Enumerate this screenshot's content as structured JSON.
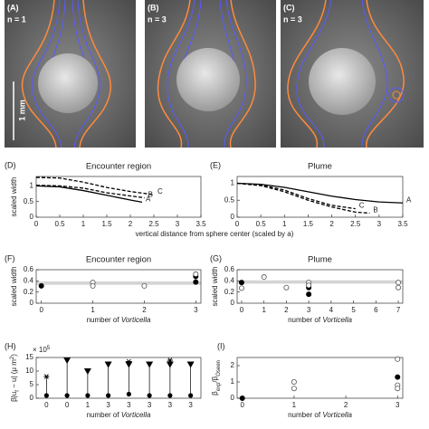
{
  "images": {
    "panels": [
      {
        "label": "(A)",
        "n": "n = 1"
      },
      {
        "label": "(B)",
        "n": "n = 3"
      },
      {
        "label": "(C)",
        "n": "n = 3"
      }
    ],
    "scale_bar": "1 mm"
  },
  "chart_data": [
    {
      "type": "line",
      "label": "(D)",
      "title": "Encounter region",
      "ylabel": "scaled width",
      "xlabel": "vertical  distance from sphere center (scaled by a)",
      "xlim": [
        0,
        3.5
      ],
      "xticks": [
        0,
        0.5,
        1,
        1.5,
        2,
        2.5,
        3,
        3.5
      ],
      "ylim": [
        0,
        1.3
      ],
      "yticks": [
        0,
        0.5,
        1
      ],
      "series": [
        {
          "name": "A",
          "color": "#000000",
          "dash": false,
          "x": [
            0,
            0.5,
            1,
            1.5,
            2,
            2.25
          ],
          "values": [
            1.0,
            0.97,
            0.85,
            0.7,
            0.55,
            0.48
          ]
        },
        {
          "name": "B",
          "color": "#000000",
          "dash": true,
          "x": [
            0,
            0.5,
            1,
            1.5,
            2,
            2.3
          ],
          "values": [
            1.02,
            1.0,
            0.93,
            0.78,
            0.68,
            0.62
          ]
        },
        {
          "name": "C",
          "color": "#000000",
          "dash": true,
          "x": [
            0,
            0.5,
            1,
            1.5,
            2,
            2.5
          ],
          "values": [
            1.27,
            1.25,
            1.12,
            0.95,
            0.82,
            0.72
          ]
        }
      ]
    },
    {
      "type": "line",
      "label": "(E)",
      "title": "Plume",
      "xlim": [
        0,
        3.5
      ],
      "xticks": [
        0,
        0.5,
        1,
        1.5,
        2,
        2.5,
        3,
        3.5
      ],
      "ylim": [
        0,
        1.2
      ],
      "yticks": [
        0,
        0.5,
        1
      ],
      "series": [
        {
          "name": "A",
          "color": "#000000",
          "dash": false,
          "x": [
            0,
            0.5,
            1,
            1.5,
            2,
            2.5,
            3,
            3.5
          ],
          "values": [
            1.0,
            0.97,
            0.88,
            0.75,
            0.62,
            0.52,
            0.45,
            0.42
          ]
        },
        {
          "name": "C",
          "color": "#000000",
          "dash": true,
          "x": [
            0,
            0.5,
            1,
            1.5,
            2,
            2.5
          ],
          "values": [
            1.0,
            0.95,
            0.8,
            0.55,
            0.35,
            0.25
          ]
        },
        {
          "name": "B",
          "color": "#000000",
          "dash": true,
          "x": [
            0,
            0.5,
            1,
            1.5,
            2,
            2.5,
            2.8
          ],
          "values": [
            1.0,
            0.93,
            0.75,
            0.5,
            0.3,
            0.15,
            0.12
          ]
        }
      ]
    },
    {
      "type": "scatter",
      "label": "(F)",
      "title": "Encounter region",
      "ylabel": "scaled width",
      "xlabel": [
        "number of ",
        "Vorticella"
      ],
      "xlim": [
        -0.1,
        3.1
      ],
      "xticks": [
        0,
        1,
        2,
        3
      ],
      "ylim": [
        0,
        0.6
      ],
      "yticks": [
        0,
        0.2,
        0.4,
        0.6
      ],
      "band": [
        0.33,
        0.39
      ],
      "band_color": "#d4d4d4",
      "series": [
        {
          "filled": true,
          "color": "#000000",
          "x": [
            0,
            3,
            3
          ],
          "values": [
            0.31,
            0.48,
            0.38
          ]
        },
        {
          "filled": false,
          "color": "#555555",
          "x": [
            1,
            1,
            2,
            3
          ],
          "values": [
            0.37,
            0.31,
            0.31,
            0.52
          ]
        }
      ]
    },
    {
      "type": "scatter",
      "label": "(G)",
      "title": "Plume",
      "ylabel": "scaled width",
      "xlabel": [
        "number of ",
        "Vorticella"
      ],
      "xlim": [
        -0.2,
        7.2
      ],
      "xticks": [
        0,
        1,
        2,
        3,
        4,
        5,
        6,
        7
      ],
      "ylim": [
        0,
        0.6
      ],
      "yticks": [
        0,
        0.2,
        0.4,
        0.6
      ],
      "band": [
        0.35,
        0.41
      ],
      "band_color": "#d4d4d4",
      "series": [
        {
          "filled": true,
          "color": "#000000",
          "x": [
            0,
            3,
            3
          ],
          "values": [
            0.37,
            0.28,
            0.16
          ]
        },
        {
          "filled": false,
          "color": "#555555",
          "x": [
            0,
            1,
            2,
            3,
            3,
            7,
            7
          ],
          "values": [
            0.27,
            0.47,
            0.28,
            0.37,
            0.32,
            0.37,
            0.28
          ]
        }
      ]
    },
    {
      "type": "dumbbell",
      "label": "(H)",
      "ylabel": [
        "β|u",
        "f",
        " − u| (μ m",
        "2",
        ")"
      ],
      "multiplier": [
        "× 10",
        "5"
      ],
      "xlabel": [
        "number of ",
        "Vorticella"
      ],
      "categories": [
        "0",
        "0",
        "1",
        "3",
        "3",
        "3",
        "3",
        "3"
      ],
      "ylim": [
        0,
        15
      ],
      "yticks": [
        0,
        5,
        10,
        15
      ],
      "series": [
        {
          "marker": "triangle",
          "color": "#000000",
          "values": [
            null,
            14,
            10,
            12.5,
            12.5,
            12.5,
            12.5,
            12.5
          ]
        },
        {
          "marker": "star",
          "color": "#000000",
          "values": [
            8,
            null,
            null,
            null,
            13.5,
            null,
            14,
            null
          ]
        },
        {
          "marker": "circle",
          "color": "#000000",
          "values": [
            1,
            1,
            1,
            1,
            1.5,
            1,
            1,
            1
          ]
        }
      ]
    },
    {
      "type": "scatter",
      "label": "(I)",
      "ylabel": [
        "β",
        "exp",
        "/β",
        "Oseen"
      ],
      "xlabel": [
        "number of ",
        "Vorticella"
      ],
      "xlim": [
        -0.1,
        3.1
      ],
      "xticks": [
        0,
        1,
        2,
        3
      ],
      "ylim": [
        0,
        2.5
      ],
      "yticks": [
        0,
        1,
        2
      ],
      "series": [
        {
          "filled": true,
          "color": "#000000",
          "x": [
            0,
            3
          ],
          "values": [
            0,
            1.3
          ]
        },
        {
          "filled": false,
          "color": "#555555",
          "x": [
            1,
            1,
            3,
            3,
            3
          ],
          "values": [
            1.0,
            0.6,
            2.4,
            0.8,
            0.6
          ]
        }
      ]
    }
  ]
}
